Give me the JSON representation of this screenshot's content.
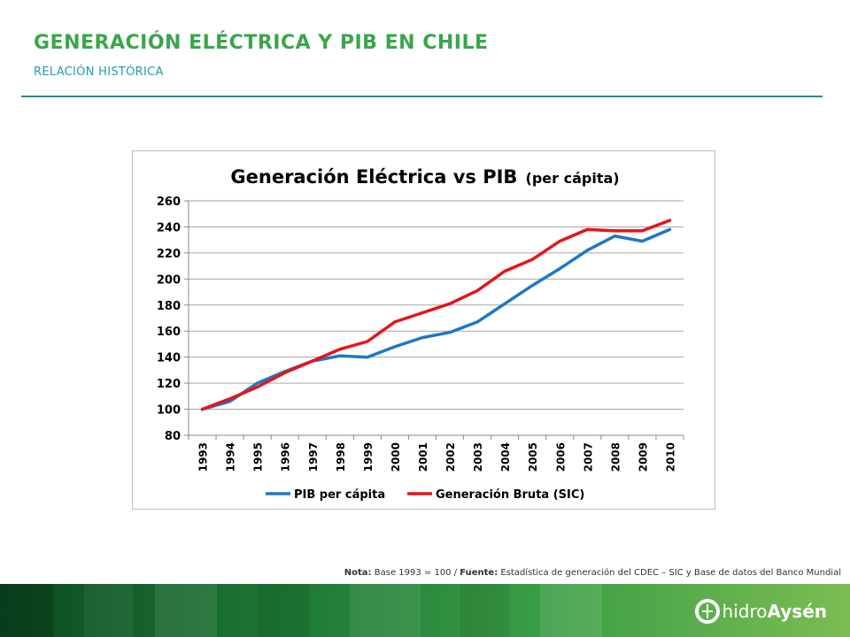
{
  "header": {
    "title": "GENERACIÓN ELÉCTRICA Y PIB EN CHILE",
    "subtitle": "RELACIÓN HISTÓRICA"
  },
  "colors": {
    "title_green": "#3aa64a",
    "subtitle_teal": "#1f9fa3",
    "rule": "#1a8f8f",
    "series_pib": "#1f77c4",
    "series_gen": "#e3151a"
  },
  "chart_data": {
    "type": "line",
    "title_main": "Generación Eléctrica vs PIB",
    "title_suffix": "(per cápita)",
    "x": [
      "1993",
      "1994",
      "1995",
      "1996",
      "1997",
      "1998",
      "1999",
      "2000",
      "2001",
      "2002",
      "2003",
      "2004",
      "2005",
      "2006",
      "2007",
      "2008",
      "2009",
      "2010"
    ],
    "ylim": [
      80,
      260
    ],
    "yticks": [
      80,
      100,
      120,
      140,
      160,
      180,
      200,
      220,
      240,
      260
    ],
    "grid": true,
    "legend_position": "bottom",
    "series": [
      {
        "name": "PIB per cápita",
        "color": "#1f77c4",
        "values": [
          100,
          106,
          120,
          129,
          137,
          141,
          140,
          148,
          155,
          159,
          167,
          181,
          195,
          208,
          222,
          233,
          229,
          238
        ]
      },
      {
        "name": "Generación Bruta (SIC)",
        "color": "#e3151a",
        "values": [
          100,
          108,
          117,
          128,
          137,
          146,
          152,
          167,
          174,
          181,
          191,
          206,
          215,
          229,
          238,
          237,
          237,
          245
        ]
      }
    ]
  },
  "note": {
    "label1": "Nota:",
    "text1": " Base 1993 = 100 / ",
    "label2": "Fuente:",
    "text2": " Estadística de generación del CDEC – SIC y Base de datos del Banco Mundial"
  },
  "logo": {
    "word1": "hidro",
    "word2": "Aysén"
  }
}
